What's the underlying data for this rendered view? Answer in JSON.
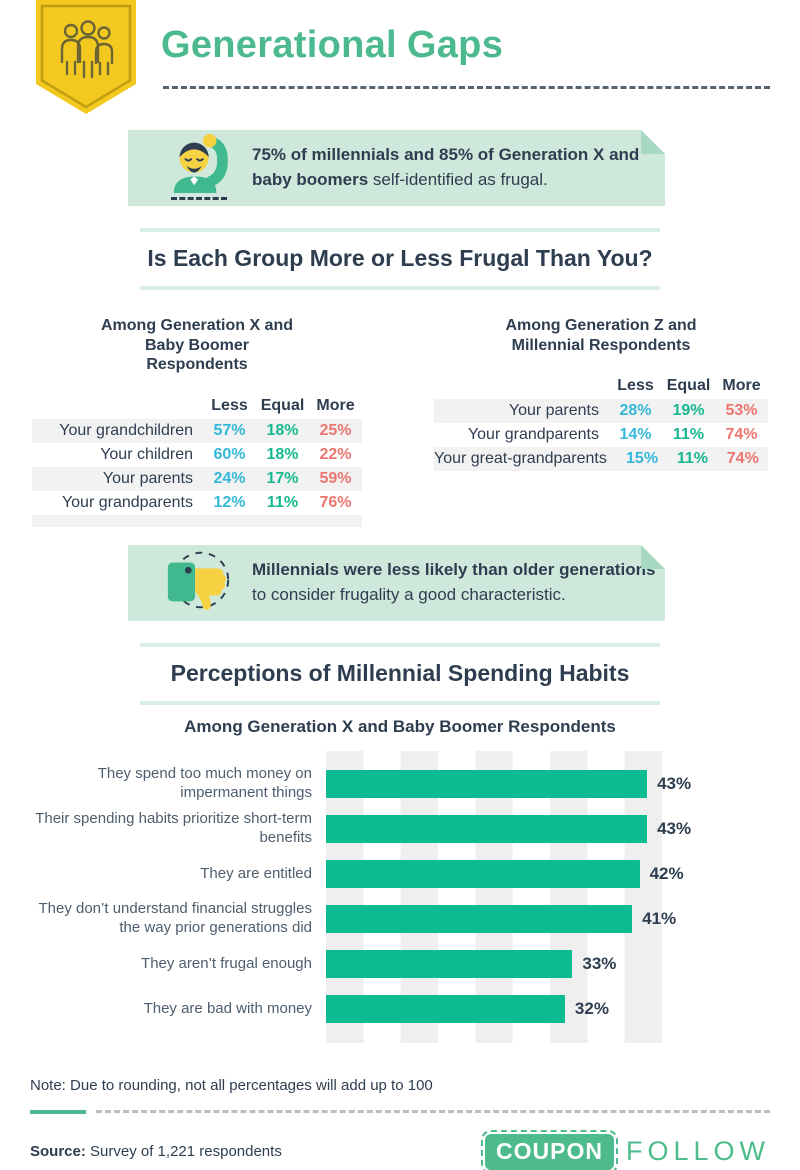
{
  "header": {
    "title_part1": "Generational",
    "title_part2": "Gaps"
  },
  "callouts": [
    {
      "icon": "man-scratching-head",
      "bold": "75% of millennials and 85% of Generation X and baby boomers",
      "regular": " self-identified as frugal."
    },
    {
      "icon": "thumbs-down",
      "bold": "Millennials were less likely than older generations",
      "regular": " to consider frugality a good characteristic."
    }
  ],
  "sections": [
    {
      "title": "Is Each Group More or Less Frugal Than You?"
    },
    {
      "title": "Perceptions of Millennial Spending Habits",
      "subtitle": "Among Generation X and Baby Boomer Respondents"
    }
  ],
  "chart_data": [
    {
      "type": "table",
      "title": "Among Generation X and Baby Boomer Respondents",
      "columns": [
        "Less",
        "Equal",
        "More"
      ],
      "rows": [
        {
          "label": "Your grandchildren",
          "less": "57%",
          "equal": "18%",
          "more": "25%"
        },
        {
          "label": "Your children",
          "less": "60%",
          "equal": "18%",
          "more": "22%"
        },
        {
          "label": "Your parents",
          "less": "24%",
          "equal": "17%",
          "more": "59%"
        },
        {
          "label": "Your grandparents",
          "less": "12%",
          "equal": "11%",
          "more": "76%"
        }
      ]
    },
    {
      "type": "table",
      "title": "Among Generation Z and Millennial Respondents",
      "columns": [
        "Less",
        "Equal",
        "More"
      ],
      "rows": [
        {
          "label": "Your parents",
          "less": "28%",
          "equal": "19%",
          "more": "53%"
        },
        {
          "label": "Your grandparents",
          "less": "14%",
          "equal": "11%",
          "more": "74%"
        },
        {
          "label": "Your great-grandparents",
          "less": "15%",
          "equal": "11%",
          "more": "74%"
        }
      ]
    },
    {
      "type": "bar",
      "orientation": "horizontal",
      "title": "Perceptions of Millennial Spending Habits",
      "subtitle": "Among Generation X and Baby Boomer Respondents",
      "categories": [
        "They spend too much money on impermanent things",
        "Their spending habits prioritize short-term benefits",
        "They are entitled",
        "They don’t understand financial struggles the way prior generations did",
        "They aren’t frugal enough",
        "They are bad with money"
      ],
      "values": [
        43,
        43,
        42,
        41,
        33,
        32
      ],
      "value_labels": [
        "43%",
        "43%",
        "42%",
        "41%",
        "33%",
        "32%"
      ],
      "xlim": [
        0,
        45
      ],
      "grid": "striped-background",
      "bar_color": "#0BBC92"
    }
  ],
  "footer": {
    "note": "Note: Due to rounding, not all percentages will add up to 100",
    "source_label": "Source:",
    "source_text": " Survey of 1,221 respondents",
    "logo_coupon": "COUPON",
    "logo_follow": "FOLLOW"
  },
  "colors": {
    "accent_green": "#4CBA8E",
    "bar_green": "#0BBC92",
    "less_cyan": "#35B8D9",
    "equal_green": "#17B890",
    "more_salmon": "#EC7571",
    "navy_text": "#2E3E50",
    "mint_background": "#CEE9DC",
    "badge_yellow": "#F3C91F",
    "logo_green": "#4DBB8C"
  }
}
